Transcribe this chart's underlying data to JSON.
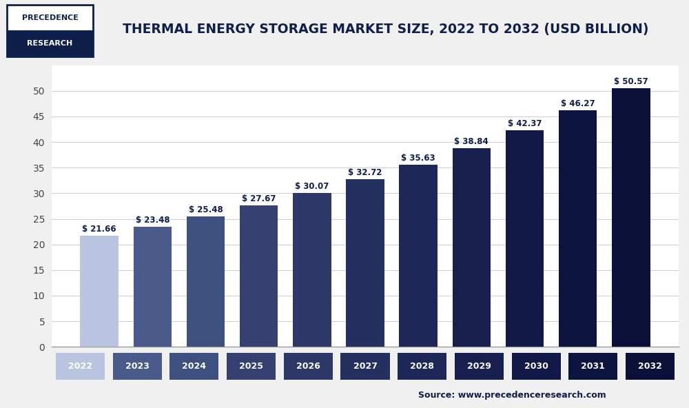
{
  "title": "THERMAL ENERGY STORAGE MARKET SIZE, 2022 TO 2032 (USD BILLION)",
  "years": [
    2022,
    2023,
    2024,
    2025,
    2026,
    2027,
    2028,
    2029,
    2030,
    2031,
    2032
  ],
  "values": [
    21.66,
    23.48,
    25.48,
    27.67,
    30.07,
    32.72,
    35.63,
    38.84,
    42.37,
    46.27,
    50.57
  ],
  "bar_colors": [
    "#b8c4e0",
    "#4a5a8a",
    "#3d5080",
    "#334070",
    "#2b3868",
    "#243060",
    "#1e2858",
    "#182050",
    "#121848",
    "#0e1440",
    "#0a1038"
  ],
  "background_color": "#f0f0f0",
  "plot_background_color": "#ffffff",
  "title_color": "#0f1f4b",
  "axis_color": "#444444",
  "grid_color": "#d0d0d0",
  "label_color": "#0f1f4b",
  "source_text": "Source: www.precedenceresearch.com",
  "logo_text_line1": "PRECEDENCE",
  "logo_text_line2": "RESEARCH",
  "logo_color": "#0f1f4b",
  "logo_border_color": "#0f1f4b",
  "ylim": [
    0,
    55
  ],
  "yticks": [
    0,
    5,
    10,
    15,
    20,
    25,
    30,
    35,
    40,
    45,
    50
  ],
  "value_label_prefix": "$ "
}
